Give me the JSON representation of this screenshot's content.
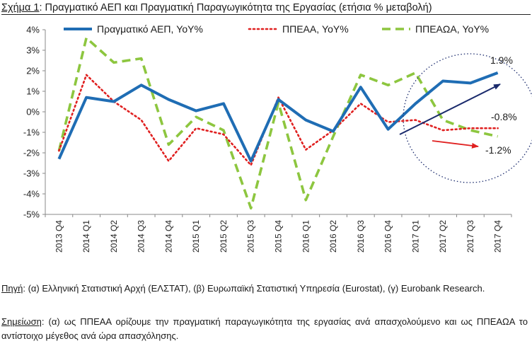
{
  "title_label": "Σχήμα 1",
  "title_text": ": Πραγματικό ΑΕΠ και Πραγματική Παραγωγικότητα της Εργασίας (ετήσια % μεταβολή)",
  "chart_data": {
    "type": "line",
    "categories": [
      "2013 Q4",
      "2014 Q1",
      "2014 Q2",
      "2014 Q3",
      "2014 Q4",
      "2015 Q1",
      "2015 Q2",
      "2015 Q3",
      "2015 Q4",
      "2016 Q1",
      "2016 Q2",
      "2016 Q3",
      "2016 Q4",
      "2017 Q1",
      "2017 Q2",
      "2017 Q3",
      "2017 Q4"
    ],
    "ylim": [
      -5,
      4
    ],
    "yticks": [
      "-5%",
      "-4%",
      "-3%",
      "-2%",
      "-1%",
      "0%",
      "1%",
      "2%",
      "3%",
      "4%"
    ],
    "legend_position": "top",
    "series": [
      {
        "name": "Πραγματικό ΑΕΠ, YoY%",
        "color": "#1f6db4",
        "style": "solid",
        "values": [
          -2.3,
          0.7,
          0.5,
          1.3,
          0.6,
          0.05,
          0.4,
          -2.4,
          0.6,
          -0.4,
          -0.95,
          1.2,
          -0.85,
          0.4,
          1.5,
          1.4,
          1.9
        ]
      },
      {
        "name": "ΠΠΕΑΑ, YoY%",
        "color": "#e02020",
        "style": "dotted",
        "values": [
          -1.9,
          1.8,
          0.5,
          -0.4,
          -2.4,
          -0.8,
          -1.1,
          -2.6,
          0.7,
          -1.85,
          -0.9,
          0.4,
          -0.5,
          -0.4,
          -0.9,
          -0.8,
          -0.8
        ]
      },
      {
        "name": "ΠΠΕΑΩΑ, YoY%",
        "color": "#8dc63f",
        "style": "dashed",
        "values": [
          -1.9,
          3.6,
          2.4,
          2.6,
          -1.6,
          -0.25,
          -0.9,
          -4.7,
          0.45,
          -4.3,
          -1.2,
          1.8,
          1.3,
          1.9,
          -0.4,
          -0.9,
          -1.2
        ]
      }
    ],
    "annotations": [
      "1.9%",
      "-0.8%",
      "-1.2%"
    ]
  },
  "source_label": "Πηγή",
  "source_text": ": (α) Ελληνική Στατιστική Αρχή (ΕΛΣΤΑΤ), (β) Ευρωπαϊκή Στατιστική Υπηρεσία (Eurostat), (γ) Eurobank Research.",
  "note_label": "Σημείωση",
  "note_text": ": (α) ως ΠΠΕΑΑ ορίζουμε την πραγματική παραγωγικότητα της εργασίας ανά απασχολούμενο και ως ΠΠΕΑΩΑ το αντίστοιχο μέγεθος ανά ώρα απασχόλησης."
}
